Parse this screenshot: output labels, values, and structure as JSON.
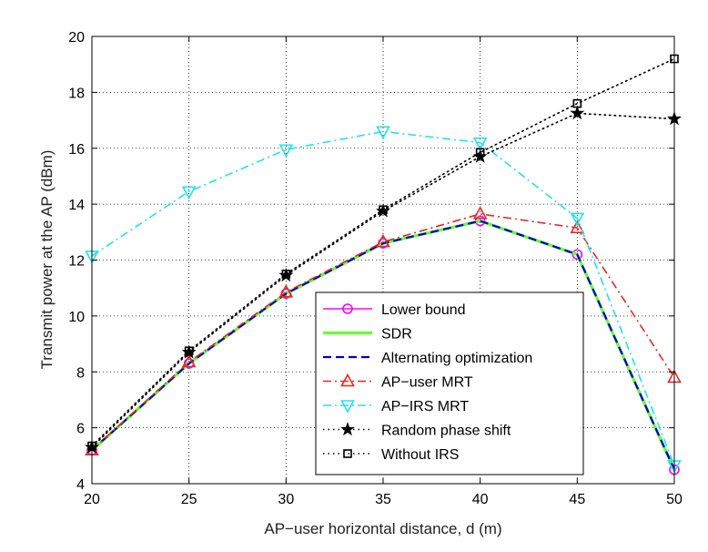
{
  "chart_data": {
    "type": "line",
    "title": "",
    "xlabel": "AP−user horizontal distance, d (m)",
    "ylabel": "Transmit power at the AP (dBm)",
    "xlim": [
      20,
      50
    ],
    "ylim": [
      4,
      20
    ],
    "x_ticks": [
      "20",
      "25",
      "30",
      "35",
      "40",
      "45",
      "50"
    ],
    "y_ticks": [
      "4",
      "6",
      "8",
      "10",
      "12",
      "14",
      "16",
      "18",
      "20"
    ],
    "grid": true,
    "legend_position": "bottom-right",
    "x": [
      20,
      25,
      30,
      35,
      40,
      45,
      50
    ],
    "series": [
      {
        "name": "Lower bound",
        "color": "#ff00ff",
        "marker": "circle",
        "dash": "solid",
        "values": [
          5.2,
          8.3,
          10.8,
          12.6,
          13.4,
          12.2,
          4.5
        ]
      },
      {
        "name": "SDR",
        "color": "#66ff33",
        "marker": "none",
        "dash": "solid",
        "values": [
          5.2,
          8.3,
          10.8,
          12.6,
          13.4,
          12.2,
          4.5
        ]
      },
      {
        "name": "Alternating optimization",
        "color": "#0000cc",
        "marker": "none",
        "dash": "dashed",
        "values": [
          5.2,
          8.3,
          10.8,
          12.6,
          13.4,
          12.2,
          4.5
        ]
      },
      {
        "name": "AP−user MRT",
        "color": "#e8281f",
        "marker": "triangle-up",
        "dash": "dashdot",
        "values": [
          5.2,
          8.35,
          10.85,
          12.65,
          13.65,
          13.15,
          7.8
        ]
      },
      {
        "name": "AP−IRS MRT",
        "color": "#22e0f0",
        "marker": "triangle-down",
        "dash": "dashdot",
        "values": [
          12.15,
          14.45,
          15.95,
          16.6,
          16.2,
          13.5,
          4.65
        ]
      },
      {
        "name": "Random phase shift",
        "color": "#000000",
        "marker": "star",
        "dash": "dotted",
        "values": [
          5.3,
          8.7,
          11.45,
          13.75,
          15.7,
          17.25,
          17.05
        ]
      },
      {
        "name": "Without IRS",
        "color": "#000000",
        "marker": "square",
        "dash": "dotted",
        "values": [
          5.35,
          8.75,
          11.5,
          13.8,
          15.85,
          17.6,
          19.2
        ]
      }
    ]
  }
}
